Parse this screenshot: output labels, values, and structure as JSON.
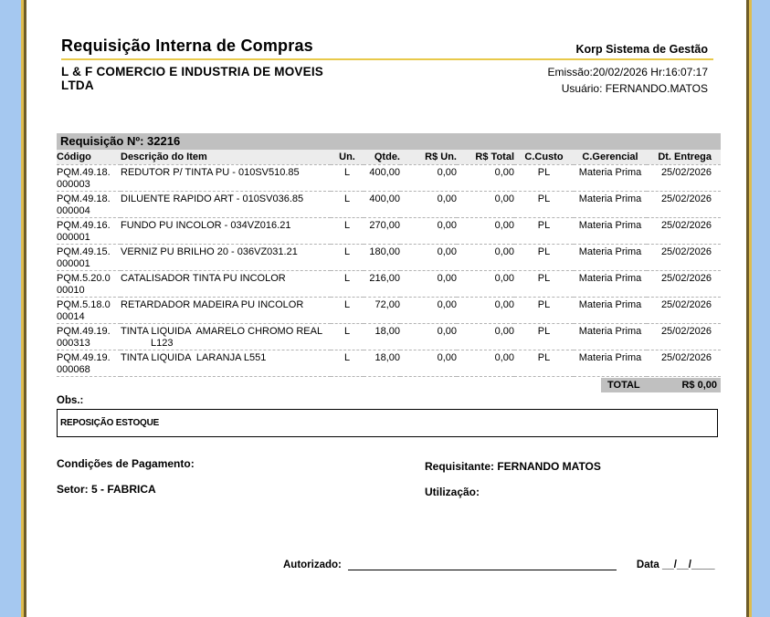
{
  "header": {
    "title": "Requisição Interna de Compras",
    "brand": "Korp Sistema de Gestão",
    "company_lines": [
      "L & F COMERCIO E INDUSTRIA DE MOVEIS",
      "LTDA"
    ],
    "emission": "Emissão:20/02/2026 Hr:16:07:17",
    "user": "Usuário: FERNANDO.MATOS"
  },
  "requisition": {
    "bar_label": "Requisição Nº: 32216"
  },
  "table": {
    "headers": [
      "Código",
      "Descrição do Item",
      "Un.",
      "Qtde.",
      "R$ Un.",
      "R$ Total",
      "C.Custo",
      "C.Gerencial",
      "Dt. Entrega"
    ],
    "rows": [
      {
        "code_lines": [
          "PQM.49.18.",
          "000003"
        ],
        "desc_lines": [
          "REDUTOR P/ TINTA PU - 010SV510.85"
        ],
        "un": "L",
        "qty": "400,00",
        "unit_price": "0,00",
        "total": "0,00",
        "cost_center": "PL",
        "mgmt_center": "Materia Prima",
        "delivery": "25/02/2026"
      },
      {
        "code_lines": [
          "PQM.49.18.",
          "000004"
        ],
        "desc_lines": [
          "DILUENTE RAPIDO ART - 010SV036.85"
        ],
        "un": "L",
        "qty": "400,00",
        "unit_price": "0,00",
        "total": "0,00",
        "cost_center": "PL",
        "mgmt_center": "Materia Prima",
        "delivery": "25/02/2026"
      },
      {
        "code_lines": [
          "PQM.49.16.",
          "000001"
        ],
        "desc_lines": [
          "FUNDO PU INCOLOR - 034VZ016.21"
        ],
        "un": "L",
        "qty": "270,00",
        "unit_price": "0,00",
        "total": "0,00",
        "cost_center": "PL",
        "mgmt_center": "Materia Prima",
        "delivery": "25/02/2026"
      },
      {
        "code_lines": [
          "PQM.49.15.",
          "000001"
        ],
        "desc_lines": [
          "VERNIZ PU BRILHO 20 - 036VZ031.21"
        ],
        "un": "L",
        "qty": "180,00",
        "unit_price": "0,00",
        "total": "0,00",
        "cost_center": "PL",
        "mgmt_center": "Materia Prima",
        "delivery": "25/02/2026"
      },
      {
        "code_lines": [
          "PQM.5.20.0",
          "00010"
        ],
        "desc_lines": [
          "CATALISADOR TINTA PU INCOLOR"
        ],
        "un": "L",
        "qty": "216,00",
        "unit_price": "0,00",
        "total": "0,00",
        "cost_center": "PL",
        "mgmt_center": "Materia Prima",
        "delivery": "25/02/2026"
      },
      {
        "code_lines": [
          "PQM.5.18.0",
          "00014"
        ],
        "desc_lines": [
          "RETARDADOR MADEIRA PU INCOLOR"
        ],
        "un": "L",
        "qty": "72,00",
        "unit_price": "0,00",
        "total": "0,00",
        "cost_center": "PL",
        "mgmt_center": "Materia Prima",
        "delivery": "25/02/2026"
      },
      {
        "code_lines": [
          "PQM.49.19.",
          "000313"
        ],
        "desc_lines": [
          "TINTA LIQUIDA  AMARELO CHROMO REAL",
          "L123"
        ],
        "un": "L",
        "qty": "18,00",
        "unit_price": "0,00",
        "total": "0,00",
        "cost_center": "PL",
        "mgmt_center": "Materia Prima",
        "delivery": "25/02/2026"
      },
      {
        "code_lines": [
          "PQM.49.19.",
          "000068"
        ],
        "desc_lines": [
          "TINTA LIQUIDA  LARANJA L551"
        ],
        "un": "L",
        "qty": "18,00",
        "unit_price": "0,00",
        "total": "0,00",
        "cost_center": "PL",
        "mgmt_center": "Materia Prima",
        "delivery": "25/02/2026"
      }
    ],
    "total_label": "TOTAL",
    "total_value": "R$ 0,00"
  },
  "obs": {
    "label": "Obs.:",
    "value": "REPOSIÇÃO ESTOQUE"
  },
  "footer": {
    "payment_terms": "Condições de Pagamento:",
    "requester": "Requisitante: FERNANDO MATOS",
    "sector": "Setor: 5 - FABRICA",
    "usage": "Utilização:",
    "authorized_label": "Autorizado:",
    "date_label": "Data __/__/____"
  },
  "colors": {
    "viewer_bg": "#a5c8f0",
    "edge_gold": "#dfbd50",
    "edge_brown": "#6e5c28",
    "bar_gray": "#c0c0c0",
    "header_row": "#ececec",
    "title_rule": "#e8c94a"
  }
}
